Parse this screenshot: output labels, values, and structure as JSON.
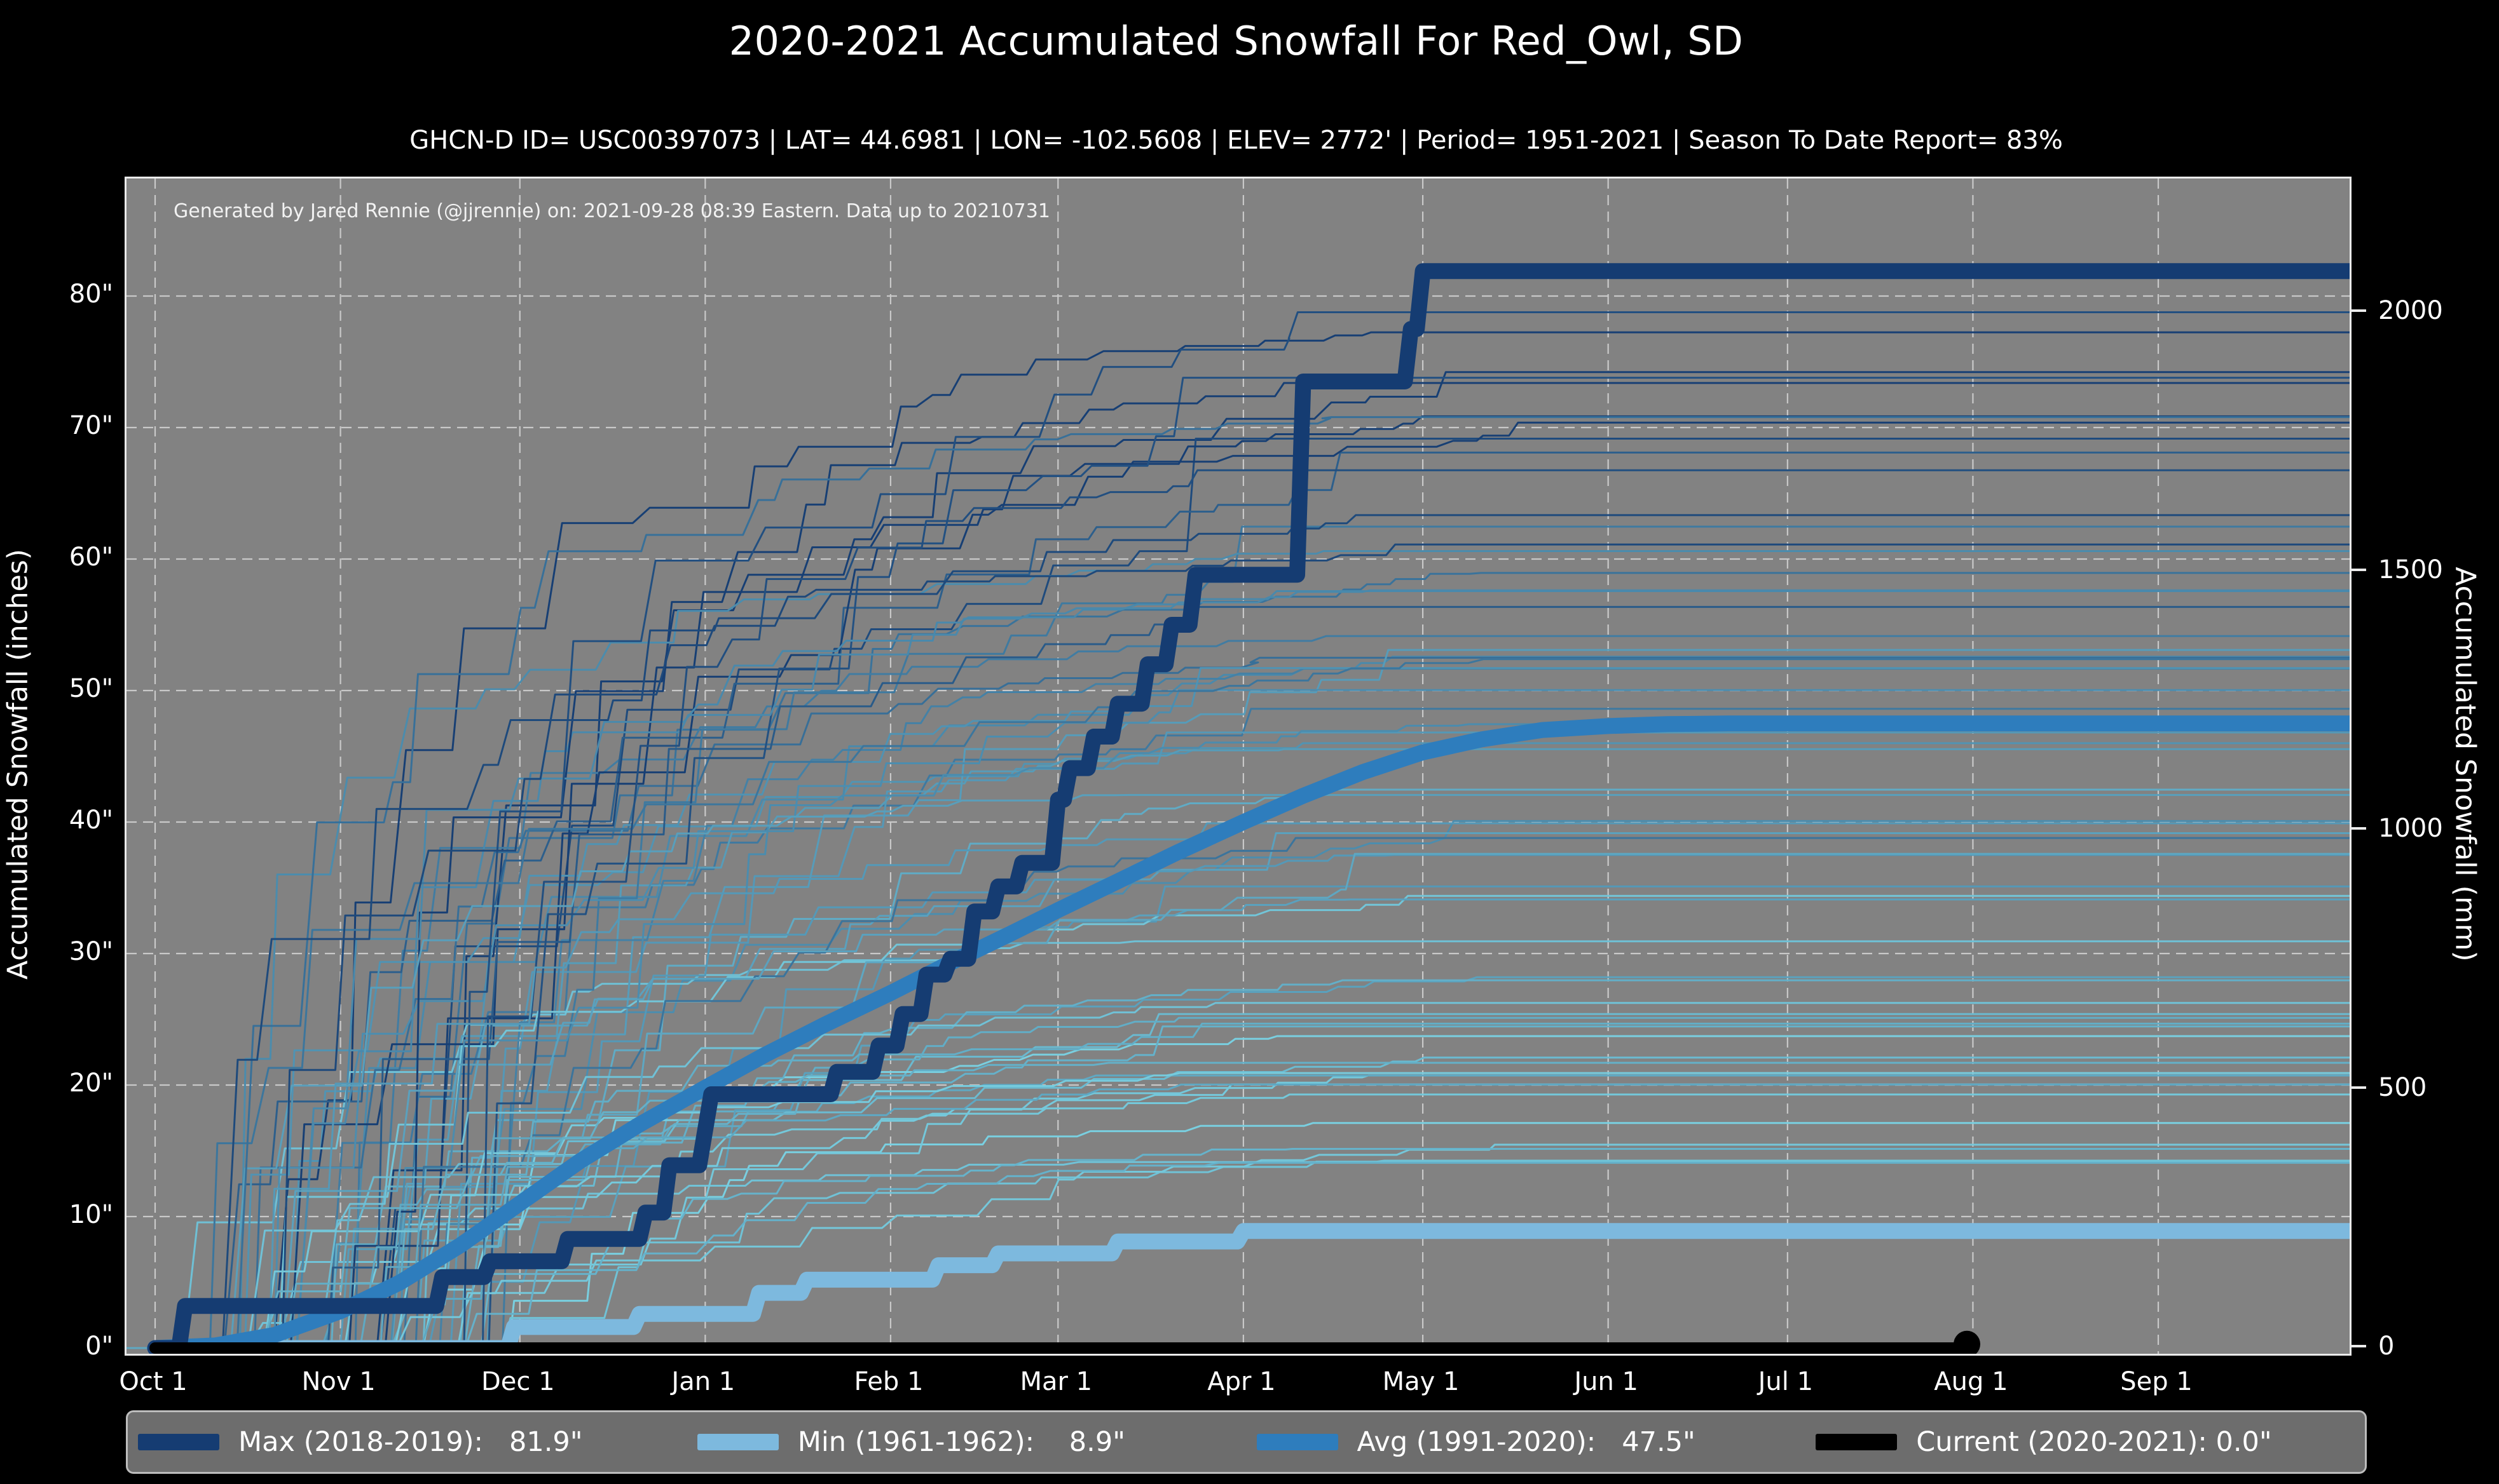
{
  "title": "2020-2021 Accumulated Snowfall For Red_Owl, SD",
  "subtitle": "GHCN-D ID= USC00397073 | LAT= 44.6981 | LON= -102.5608 | ELEV= 2772' | Period= 1951-2021 | Season To Date Report= 83%",
  "annotation": "Generated by Jared Rennie (@jjrennie) on: 2021-09-28 08:39 Eastern. Data up to 20210731",
  "colors": {
    "figure_bg": "#000000",
    "plot_bg": "#828282",
    "grid": "#c9c9c9",
    "spine": "#ebebeb",
    "text": "#ffffff",
    "max_line": "#153c72",
    "min_line": "#7db9de",
    "avg_line": "#2e7dbd",
    "current_line": "#000000",
    "season_dark": "#173f74",
    "season_light": "#79cfe0"
  },
  "chart_data": {
    "type": "line",
    "title": "2020-2021 Accumulated Snowfall For Red_Owl, SD",
    "ylabel_left": "Accumulated Snowfall (inches)",
    "ylabel_right": "Accumulated Snowfall (mm)",
    "x_tick_labels": [
      "Oct 1",
      "Nov 1",
      "Dec 1",
      "Jan 1",
      "Feb 1",
      "Mar 1",
      "Apr 1",
      "May 1",
      "Jun 1",
      "Jul 1",
      "Aug 1",
      "Sep 1"
    ],
    "x_tick_days": [
      0,
      31,
      61,
      92,
      123,
      151,
      182,
      212,
      243,
      273,
      304,
      335
    ],
    "x_range_days": [
      -4.8,
      367
    ],
    "y_range_inches": [
      -0.4,
      89
    ],
    "yticks_left_values": [
      0,
      10,
      20,
      30,
      40,
      50,
      60,
      70,
      80
    ],
    "yticks_left_labels": [
      "0\"",
      "10\"",
      "20\"",
      "30\"",
      "40\"",
      "50\"",
      "60\"",
      "70\"",
      "80\""
    ],
    "yticks_right_mm": [
      0,
      500,
      1000,
      1500,
      2000
    ],
    "grid": true,
    "legend_position": "bottom",
    "series": [
      {
        "name": "Max (2018-2019)",
        "total": "81.9\"",
        "width": 25,
        "points": [
          [
            0,
            0
          ],
          [
            4,
            0
          ],
          [
            5,
            3.2
          ],
          [
            47,
            3.2
          ],
          [
            48,
            5.4
          ],
          [
            55,
            5.4
          ],
          [
            56,
            6.6
          ],
          [
            68,
            6.6
          ],
          [
            69,
            8.3
          ],
          [
            81,
            8.3
          ],
          [
            82,
            10.3
          ],
          [
            85,
            10.3
          ],
          [
            86,
            13.9
          ],
          [
            91,
            13.9
          ],
          [
            93,
            19.3
          ],
          [
            113,
            19.3
          ],
          [
            114,
            21.0
          ],
          [
            120,
            21.0
          ],
          [
            121,
            23.0
          ],
          [
            124,
            23.0
          ],
          [
            125,
            25.4
          ],
          [
            128,
            25.4
          ],
          [
            129,
            28.4
          ],
          [
            132,
            28.4
          ],
          [
            133,
            29.6
          ],
          [
            136,
            29.6
          ],
          [
            137,
            33.2
          ],
          [
            140,
            33.2
          ],
          [
            141,
            35.1
          ],
          [
            144,
            35.1
          ],
          [
            145,
            36.9
          ],
          [
            150,
            36.9
          ],
          [
            151,
            41.7
          ],
          [
            152,
            41.7
          ],
          [
            153,
            44.1
          ],
          [
            156,
            44.1
          ],
          [
            157,
            46.5
          ],
          [
            160,
            46.5
          ],
          [
            161,
            49.0
          ],
          [
            165,
            49.0
          ],
          [
            166,
            52.0
          ],
          [
            169,
            52.0
          ],
          [
            170,
            55.0
          ],
          [
            173,
            55.0
          ],
          [
            174,
            58.8
          ],
          [
            191,
            58.8
          ],
          [
            192,
            73.5
          ],
          [
            209,
            73.5
          ],
          [
            210,
            77.5
          ],
          [
            211,
            77.5
          ],
          [
            212,
            81.9
          ],
          [
            367,
            81.9
          ]
        ]
      },
      {
        "name": "Min (1961-1962)",
        "total": "8.9\"",
        "width": 25,
        "points": [
          [
            0,
            0
          ],
          [
            59,
            0
          ],
          [
            60,
            1.6
          ],
          [
            80,
            1.6
          ],
          [
            81,
            2.6
          ],
          [
            100,
            2.6
          ],
          [
            101,
            4.2
          ],
          [
            108,
            4.2
          ],
          [
            109,
            5.2
          ],
          [
            130,
            5.2
          ],
          [
            131,
            6.3
          ],
          [
            140,
            6.3
          ],
          [
            141,
            7.2
          ],
          [
            160,
            7.2
          ],
          [
            161,
            8.1
          ],
          [
            181,
            8.1
          ],
          [
            182,
            8.9
          ],
          [
            367,
            8.9
          ]
        ]
      },
      {
        "name": "Avg (1991-2020)",
        "total": "47.5\"",
        "width": 25,
        "points": [
          [
            0,
            0
          ],
          [
            10,
            0.2
          ],
          [
            20,
            1.0
          ],
          [
            31,
            2.8
          ],
          [
            41,
            5.0
          ],
          [
            51,
            7.8
          ],
          [
            61,
            11.0
          ],
          [
            71,
            14.2
          ],
          [
            81,
            17.0
          ],
          [
            92,
            19.8
          ],
          [
            102,
            22.3
          ],
          [
            112,
            24.6
          ],
          [
            123,
            27.0
          ],
          [
            133,
            29.3
          ],
          [
            143,
            31.5
          ],
          [
            151,
            33.3
          ],
          [
            161,
            35.5
          ],
          [
            171,
            37.7
          ],
          [
            182,
            40.0
          ],
          [
            192,
            42.0
          ],
          [
            202,
            43.8
          ],
          [
            212,
            45.3
          ],
          [
            222,
            46.3
          ],
          [
            232,
            47.0
          ],
          [
            243,
            47.3
          ],
          [
            253,
            47.45
          ],
          [
            263,
            47.5
          ],
          [
            367,
            47.5
          ]
        ]
      },
      {
        "name": "Current (2020-2021)",
        "total": "0.0\"",
        "width": 18,
        "marker_end_day": 303,
        "points": [
          [
            0,
            0
          ],
          [
            303,
            0
          ]
        ]
      }
    ],
    "background_seasons": {
      "count": 66,
      "seed": 20210928,
      "stroke_width": 3,
      "final_total_range_inches": [
        14,
        79
      ],
      "color_start": "#173f74",
      "color_end": "#79cfe0"
    }
  },
  "legend": {
    "items": [
      {
        "label": "Max (2018-2019):   81.9\"",
        "color": "#153c72"
      },
      {
        "label": "Min (1961-1962):    8.9\"",
        "color": "#7db9de"
      },
      {
        "label": "Avg (1991-2020):   47.5\"",
        "color": "#2e7dbd"
      },
      {
        "label": "Current (2020-2021): 0.0\"",
        "color": "#000000"
      }
    ]
  }
}
